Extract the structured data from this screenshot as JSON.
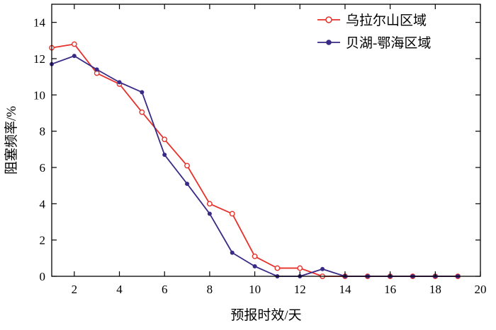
{
  "chart_data": {
    "type": "line",
    "xlabel": "预报时效/天",
    "ylabel": "阻塞频率/%",
    "xlim": [
      1,
      20
    ],
    "ylim": [
      0,
      15
    ],
    "xticks": [
      2,
      4,
      6,
      8,
      10,
      12,
      14,
      16,
      18,
      20
    ],
    "yticks": [
      0,
      2,
      4,
      6,
      8,
      10,
      12,
      14
    ],
    "grid": false,
    "legend_position": "top-right",
    "x": [
      1,
      2,
      3,
      4,
      5,
      6,
      7,
      8,
      9,
      10,
      11,
      12,
      13,
      14,
      15,
      16,
      17,
      18,
      19
    ],
    "series": [
      {
        "name": "乌拉尔山区域",
        "color": "#e8302a",
        "marker": "open-circle",
        "values": [
          12.6,
          12.8,
          11.2,
          10.6,
          9.05,
          7.55,
          6.1,
          4.0,
          3.45,
          1.1,
          0.45,
          0.45,
          0.0,
          0.0,
          0.0,
          0.0,
          0.0,
          0.0,
          0.0
        ]
      },
      {
        "name": "贝湖-鄂海区域",
        "color": "#3a2a86",
        "marker": "filled-circle",
        "values": [
          11.7,
          12.15,
          11.4,
          10.7,
          10.15,
          6.7,
          5.1,
          3.45,
          1.3,
          0.55,
          0.0,
          0.0,
          0.4,
          0.0,
          0.0,
          0.0,
          0.0,
          0.0,
          0.0
        ]
      }
    ]
  }
}
